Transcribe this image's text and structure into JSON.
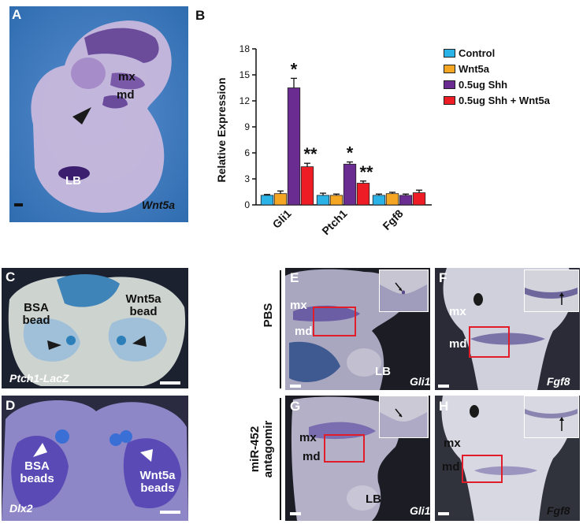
{
  "panel_letters": {
    "A": "A",
    "B": "B",
    "C": "C",
    "D": "D",
    "E": "E",
    "F": "F",
    "G": "G",
    "H": "H"
  },
  "panel_a": {
    "labels": {
      "mx": "mx",
      "md": "md",
      "lb": "LB"
    },
    "gene": "Wnt5a"
  },
  "panel_c": {
    "bead1": "BSA bead",
    "bead2": "Wnt5a bead",
    "gene": "Ptch1-LacZ"
  },
  "panel_d": {
    "bead1": "BSA beads",
    "bead2": "Wnt5a beads",
    "gene": "Dlx2"
  },
  "row_labels": {
    "top": "PBS",
    "bottom": "miR-452 antagomir"
  },
  "panel_e": {
    "mx": "mx",
    "md": "md",
    "lb": "LB",
    "gene": "Gli1"
  },
  "panel_f": {
    "mx": "mx",
    "md": "md",
    "gene": "Fgf8"
  },
  "panel_g": {
    "mx": "mx",
    "md": "md",
    "lb": "LB",
    "gene": "Gli1"
  },
  "panel_h": {
    "mx": "mx",
    "md": "md",
    "gene": "Fgf8"
  },
  "colors": {
    "control": "#2bb3e8",
    "wnt5a": "#f5a623",
    "shh": "#6a2c91",
    "shh_wnt5a": "#ee1c24",
    "embryo_bg": "#3a78b5",
    "dark_bg": "#1c1c22",
    "box": "#e11d2a"
  },
  "chart_data": {
    "type": "bar",
    "ylabel": "Relative Expression",
    "ylim": [
      0,
      18
    ],
    "yticks": [
      0,
      3,
      6,
      9,
      12,
      15,
      18
    ],
    "categories": [
      "Gli1",
      "Ptch1",
      "Fgf8"
    ],
    "series": [
      {
        "name": "Control",
        "values": [
          1.1,
          1.1,
          1.1
        ],
        "errors": [
          0.1,
          0.25,
          0.15
        ]
      },
      {
        "name": "Wnt5a",
        "values": [
          1.3,
          1.1,
          1.3
        ],
        "errors": [
          0.3,
          0.15,
          0.15
        ]
      },
      {
        "name": "0.5ug Shh",
        "values": [
          13.5,
          4.7,
          1.1
        ],
        "errors": [
          1.1,
          0.25,
          0.15
        ]
      },
      {
        "name": "0.5ug Shh + Wnt5a",
        "values": [
          4.4,
          2.5,
          1.4
        ],
        "errors": [
          0.4,
          0.25,
          0.3
        ]
      }
    ],
    "annotations": [
      {
        "category": "Gli1",
        "series": "0.5ug Shh",
        "text": "*"
      },
      {
        "category": "Gli1",
        "series": "0.5ug Shh + Wnt5a",
        "text": "**"
      },
      {
        "category": "Ptch1",
        "series": "0.5ug Shh",
        "text": "*"
      },
      {
        "category": "Ptch1",
        "series": "0.5ug Shh + Wnt5a",
        "text": "**"
      }
    ]
  }
}
